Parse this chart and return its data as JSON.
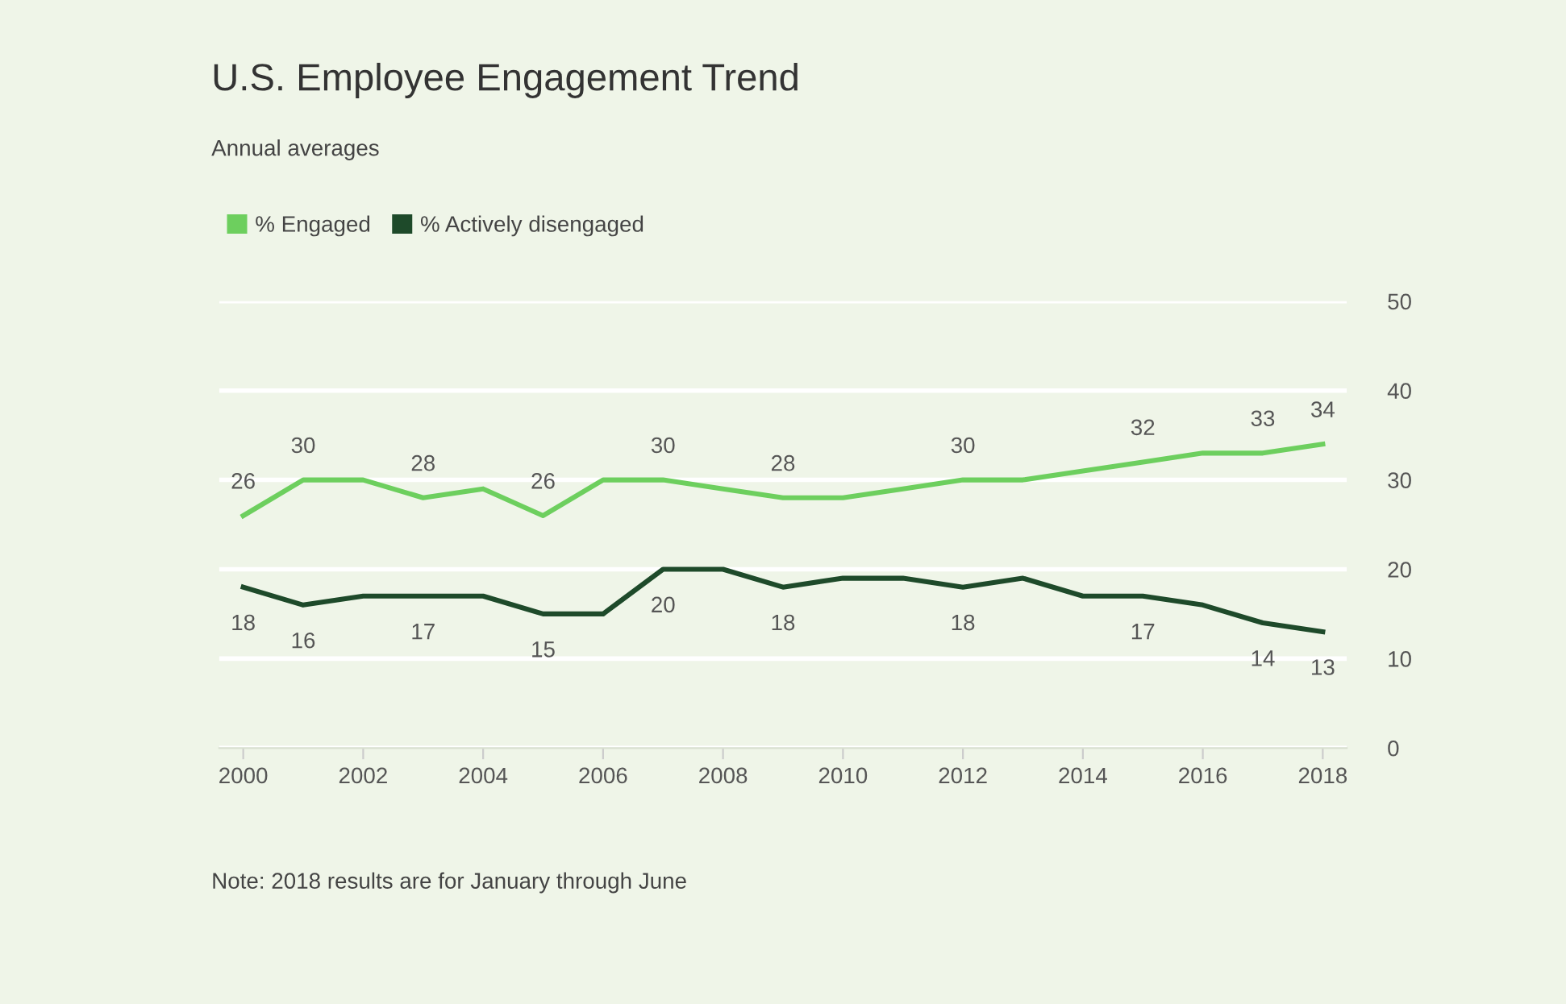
{
  "chart_data": {
    "type": "line",
    "title": "U.S. Employee Engagement Trend",
    "subtitle": "Annual averages",
    "x": [
      2000,
      2001,
      2002,
      2003,
      2004,
      2005,
      2006,
      2007,
      2008,
      2009,
      2010,
      2011,
      2012,
      2013,
      2014,
      2015,
      2016,
      2017,
      2018
    ],
    "series": [
      {
        "name": "% Engaged",
        "color": "#6dcf5e",
        "values": [
          26,
          30,
          30,
          28,
          29,
          26,
          30,
          30,
          29,
          28,
          28,
          29,
          30,
          30,
          31,
          32,
          33,
          33,
          34
        ],
        "value_labels": [
          "26",
          "30",
          null,
          "28",
          null,
          "26",
          null,
          "30",
          null,
          "28",
          null,
          null,
          "30",
          null,
          null,
          "32",
          null,
          "33",
          "34"
        ]
      },
      {
        "name": "% Actively disengaged",
        "color": "#1e4a2a",
        "values": [
          18,
          16,
          17,
          17,
          17,
          15,
          15,
          20,
          20,
          18,
          19,
          19,
          18,
          19,
          17,
          17,
          16,
          14,
          13
        ],
        "value_labels": [
          "18",
          "16",
          null,
          "17",
          null,
          "15",
          null,
          "20",
          null,
          "18",
          null,
          null,
          "18",
          null,
          null,
          "17",
          null,
          "14",
          "13"
        ]
      }
    ],
    "xlim": [
      1999.6,
      2018.4
    ],
    "xticks": [
      2000,
      2002,
      2004,
      2006,
      2008,
      2010,
      2012,
      2014,
      2016,
      2018
    ],
    "ylim": [
      0,
      50
    ],
    "yticks": [
      0,
      10,
      20,
      30,
      40,
      50
    ],
    "grid": "y",
    "legend": "top left",
    "marker": "none",
    "line_style": "solid",
    "annotations": [
      "Note: 2018 results are for January through June"
    ]
  }
}
